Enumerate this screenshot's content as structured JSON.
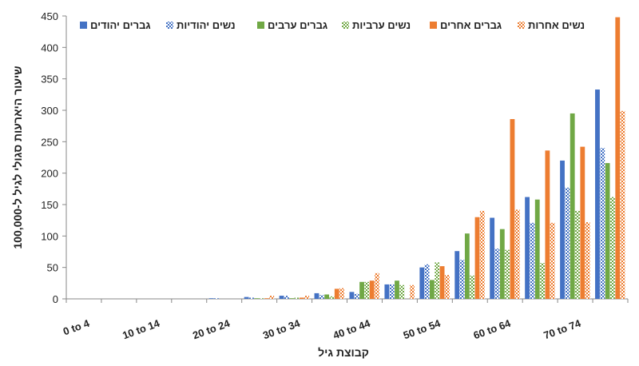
{
  "chart_data": {
    "type": "bar",
    "xlabel": "קבוצת גיל",
    "ylabel": "שיעור היארעות סגולי לגיל ל-100,000",
    "ylim": [
      0,
      450
    ],
    "yticks": [
      "0",
      "50",
      "100",
      "150",
      "200",
      "250",
      "300",
      "350",
      "400",
      "450"
    ],
    "grid": false,
    "legend": "top",
    "categories": [
      "0 to 4",
      "5 to 9",
      "10 to 14",
      "15 to 19",
      "20 to 24",
      "25 to 29",
      "30 to 34",
      "35 to 39",
      "40 to 44",
      "45 to 49",
      "50 to 54",
      "55 to 59",
      "60 to 64",
      "65 to 69",
      "70 to 74",
      "75 to 79"
    ],
    "shown_tick_labels": [
      "0 to 4",
      "10 to 14",
      "20 to 24",
      "30 to 34",
      "40 to 44",
      "50 to 54",
      "60 to 64",
      "70 to 74"
    ],
    "series": [
      {
        "name": "גברים יהודים",
        "color": "#4472c4",
        "pattern": "solid",
        "values": [
          0,
          0,
          0,
          0,
          1,
          3,
          5,
          9,
          11,
          23,
          50,
          76,
          129,
          162,
          220,
          333
        ]
      },
      {
        "name": "נשים יהודיות",
        "color": "#4472c4",
        "pattern": "checker",
        "values": [
          0,
          0,
          0,
          0,
          1,
          2,
          5,
          6,
          8,
          23,
          55,
          62,
          80,
          121,
          177,
          240
        ]
      },
      {
        "name": "גברים ערבים",
        "color": "#70a845",
        "pattern": "solid",
        "values": [
          0,
          0,
          0,
          0,
          0,
          1,
          1,
          7,
          27,
          29,
          30,
          104,
          111,
          158,
          295,
          216
        ]
      },
      {
        "name": "נשים ערביות",
        "color": "#70a845",
        "pattern": "checker",
        "values": [
          0,
          0,
          0,
          0,
          0,
          1,
          2,
          4,
          27,
          22,
          58,
          37,
          78,
          57,
          140,
          162
        ]
      },
      {
        "name": "גברים אחרים",
        "color": "#ed7d31",
        "pattern": "solid",
        "values": [
          0,
          0,
          0,
          0,
          0,
          1,
          2,
          16,
          29,
          0,
          52,
          130,
          286,
          236,
          242,
          448
        ]
      },
      {
        "name": "נשים אחרות",
        "color": "#ed7d31",
        "pattern": "checker",
        "values": [
          0,
          0,
          0,
          0,
          0,
          5,
          5,
          17,
          41,
          22,
          38,
          140,
          142,
          121,
          122,
          299
        ]
      }
    ]
  }
}
